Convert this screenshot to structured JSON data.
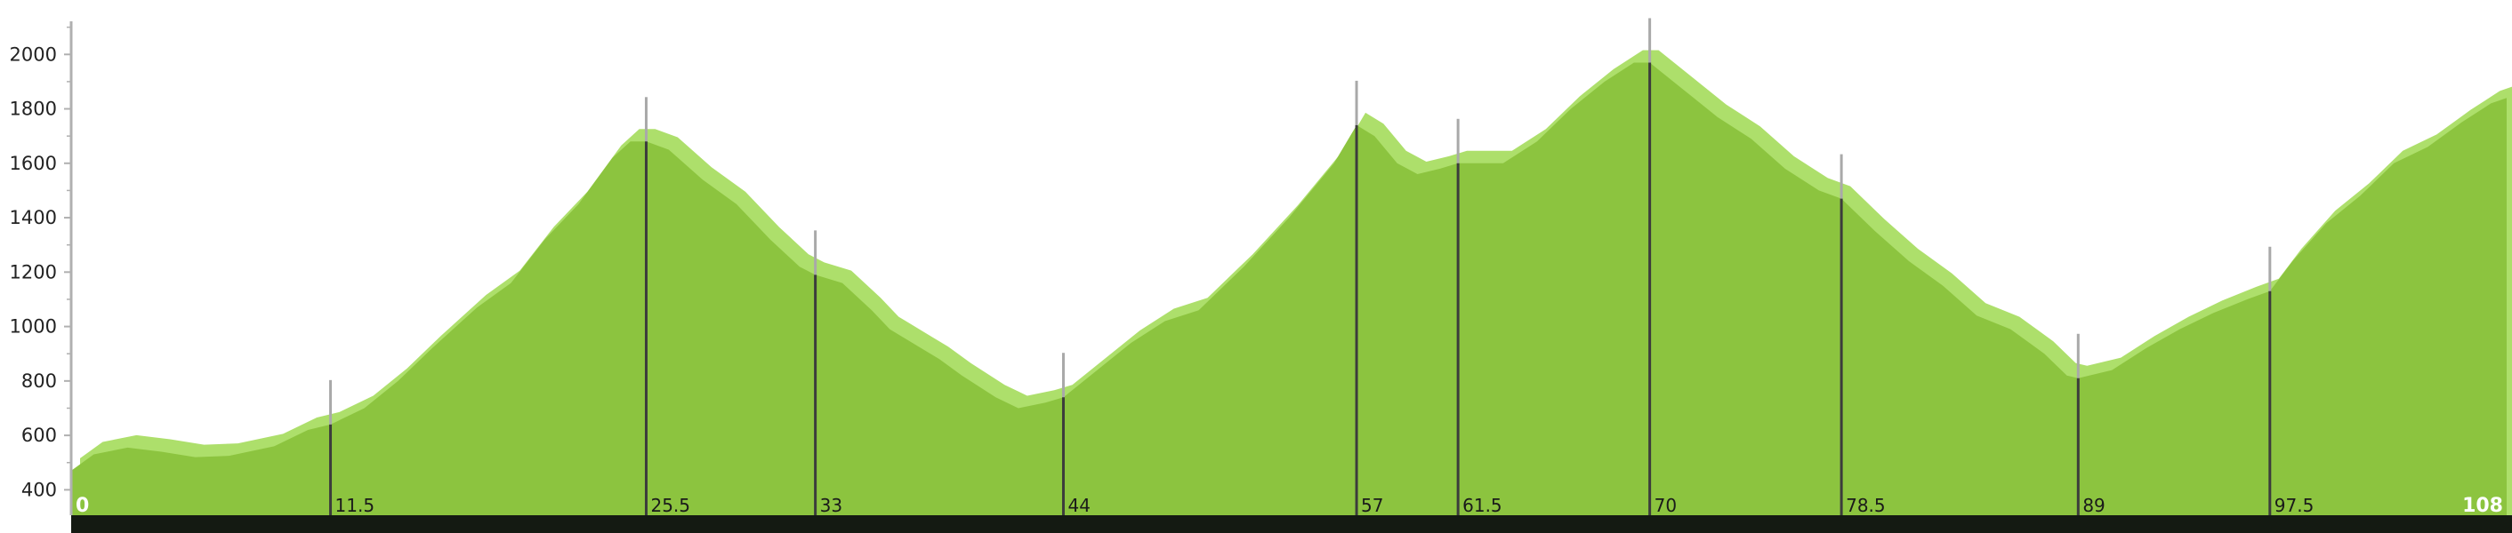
{
  "chart_data": {
    "type": "area",
    "title": "",
    "xlabel": "",
    "ylabel": "",
    "xlim": [
      0,
      108
    ],
    "ylim": [
      300,
      2200
    ],
    "y_ticks": [
      400,
      600,
      800,
      1000,
      1200,
      1400,
      1600,
      1800,
      2000
    ],
    "y_tick_labels": [
      "400",
      "600",
      "800",
      "1000",
      "1200",
      "1400",
      "1600",
      "1800",
      "2000"
    ],
    "grid": false,
    "colors": {
      "fill_dark": "#8cc43f",
      "fill_light": "#addf6b",
      "marker_dark": "#3c3c3c",
      "marker_light": "#a9a9a9",
      "axis": "#b0b0b0",
      "baseline_bar": "#141a12"
    },
    "waypoints": [
      {
        "km": 0,
        "label": "0",
        "elevation": 470
      },
      {
        "km": 11.5,
        "label": "11.5",
        "elevation": 640
      },
      {
        "km": 25.5,
        "label": "25.5",
        "elevation": 1680
      },
      {
        "km": 33,
        "label": "33",
        "elevation": 1190
      },
      {
        "km": 44,
        "label": "44",
        "elevation": 740
      },
      {
        "km": 57,
        "label": "57",
        "elevation": 1740
      },
      {
        "km": 61.5,
        "label": "61.5",
        "elevation": 1600
      },
      {
        "km": 70,
        "label": "70",
        "elevation": 1970
      },
      {
        "km": 78.5,
        "label": "78.5",
        "elevation": 1470
      },
      {
        "km": 89,
        "label": "89",
        "elevation": 810
      },
      {
        "km": 97.5,
        "label": "97.5",
        "elevation": 1130
      },
      {
        "km": 108,
        "label": "108",
        "elevation": 1840
      }
    ],
    "series": [
      {
        "values": [
          {
            "x": 0,
            "y": 470
          },
          {
            "x": 1,
            "y": 530
          },
          {
            "x": 2.5,
            "y": 555
          },
          {
            "x": 4,
            "y": 540
          },
          {
            "x": 5.5,
            "y": 520
          },
          {
            "x": 7,
            "y": 525
          },
          {
            "x": 9,
            "y": 560
          },
          {
            "x": 10.5,
            "y": 620
          },
          {
            "x": 11.5,
            "y": 640
          },
          {
            "x": 13,
            "y": 700
          },
          {
            "x": 14.5,
            "y": 800
          },
          {
            "x": 16,
            "y": 920
          },
          {
            "x": 18,
            "y": 1070
          },
          {
            "x": 19.5,
            "y": 1160
          },
          {
            "x": 21,
            "y": 1320
          },
          {
            "x": 22.5,
            "y": 1450
          },
          {
            "x": 24,
            "y": 1620
          },
          {
            "x": 24.8,
            "y": 1680
          },
          {
            "x": 25.5,
            "y": 1680
          },
          {
            "x": 26.5,
            "y": 1650
          },
          {
            "x": 28,
            "y": 1540
          },
          {
            "x": 29.5,
            "y": 1450
          },
          {
            "x": 31,
            "y": 1320
          },
          {
            "x": 32.3,
            "y": 1220
          },
          {
            "x": 33,
            "y": 1190
          },
          {
            "x": 34.2,
            "y": 1160
          },
          {
            "x": 35.5,
            "y": 1060
          },
          {
            "x": 36.3,
            "y": 990
          },
          {
            "x": 37.5,
            "y": 930
          },
          {
            "x": 38.5,
            "y": 880
          },
          {
            "x": 39.5,
            "y": 820
          },
          {
            "x": 41,
            "y": 740
          },
          {
            "x": 42,
            "y": 700
          },
          {
            "x": 43.2,
            "y": 720
          },
          {
            "x": 44,
            "y": 740
          },
          {
            "x": 45.5,
            "y": 840
          },
          {
            "x": 47,
            "y": 940
          },
          {
            "x": 48.5,
            "y": 1020
          },
          {
            "x": 50,
            "y": 1060
          },
          {
            "x": 52,
            "y": 1220
          },
          {
            "x": 54,
            "y": 1400
          },
          {
            "x": 56,
            "y": 1600
          },
          {
            "x": 57,
            "y": 1740
          },
          {
            "x": 57.8,
            "y": 1700
          },
          {
            "x": 58.8,
            "y": 1600
          },
          {
            "x": 59.7,
            "y": 1560
          },
          {
            "x": 60.7,
            "y": 1580
          },
          {
            "x": 61.5,
            "y": 1600
          },
          {
            "x": 63.5,
            "y": 1600
          },
          {
            "x": 65,
            "y": 1680
          },
          {
            "x": 66.5,
            "y": 1800
          },
          {
            "x": 68,
            "y": 1900
          },
          {
            "x": 69.3,
            "y": 1970
          },
          {
            "x": 70,
            "y": 1970
          },
          {
            "x": 71.5,
            "y": 1870
          },
          {
            "x": 73,
            "y": 1770
          },
          {
            "x": 74.5,
            "y": 1690
          },
          {
            "x": 76,
            "y": 1580
          },
          {
            "x": 77.5,
            "y": 1500
          },
          {
            "x": 78.5,
            "y": 1470
          },
          {
            "x": 80,
            "y": 1350
          },
          {
            "x": 81.5,
            "y": 1240
          },
          {
            "x": 83,
            "y": 1150
          },
          {
            "x": 84.5,
            "y": 1040
          },
          {
            "x": 86,
            "y": 990
          },
          {
            "x": 87.5,
            "y": 900
          },
          {
            "x": 88.5,
            "y": 820
          },
          {
            "x": 89,
            "y": 810
          },
          {
            "x": 90.5,
            "y": 840
          },
          {
            "x": 92,
            "y": 920
          },
          {
            "x": 93.5,
            "y": 990
          },
          {
            "x": 95,
            "y": 1050
          },
          {
            "x": 96.5,
            "y": 1100
          },
          {
            "x": 97.5,
            "y": 1130
          },
          {
            "x": 98.5,
            "y": 1240
          },
          {
            "x": 100,
            "y": 1380
          },
          {
            "x": 101.5,
            "y": 1480
          },
          {
            "x": 103,
            "y": 1600
          },
          {
            "x": 104.5,
            "y": 1660
          },
          {
            "x": 106,
            "y": 1750
          },
          {
            "x": 107.3,
            "y": 1820
          },
          {
            "x": 108,
            "y": 1840
          }
        ]
      }
    ]
  }
}
